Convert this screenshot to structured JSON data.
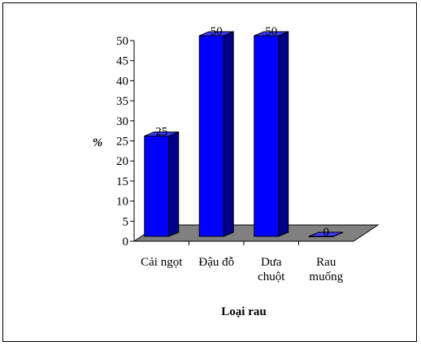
{
  "chart_data": {
    "type": "bar",
    "style": "3d-column",
    "categories": [
      [
        "Cải ngọt"
      ],
      [
        "Đậu đỗ"
      ],
      [
        "Dưa",
        "chuột"
      ],
      [
        "Rau",
        "muống"
      ]
    ],
    "values": [
      25,
      50,
      50,
      0
    ],
    "data_labels": [
      "25",
      "50",
      "50",
      "0"
    ],
    "ylabel": "%",
    "xlabel": "Loại rau",
    "ylim": [
      0,
      50
    ],
    "ytick_step": 5,
    "yticks": [
      "0",
      "5",
      "10",
      "15",
      "20",
      "25",
      "30",
      "35",
      "40",
      "45",
      "50"
    ],
    "grid": false,
    "legend": "none",
    "colors": {
      "bar_front": "#0000ff",
      "bar_side": "#00008a",
      "bar_top": "#3b3bff",
      "floor": "#808080",
      "outline": "#000000"
    }
  }
}
